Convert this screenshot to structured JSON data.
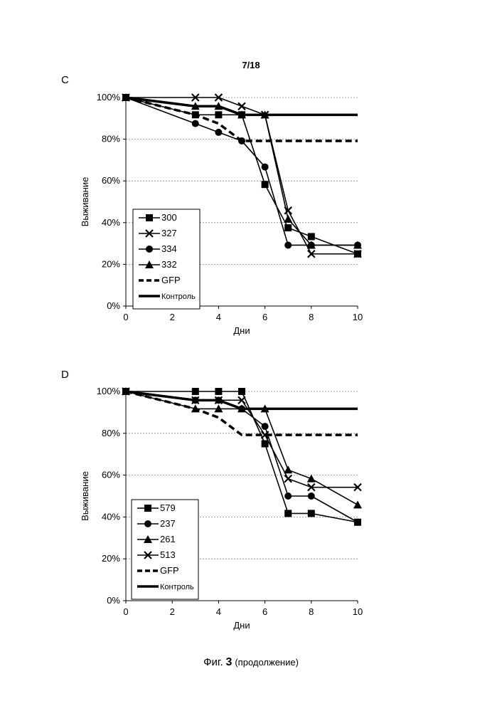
{
  "page": {
    "header": "7/18"
  },
  "caption": {
    "fig_label": "Фиг.",
    "fig_number": "3",
    "note": "(продолжение)"
  },
  "chart_data": [
    {
      "panel": "C",
      "type": "line",
      "xlabel": "Дни",
      "ylabel": "Выживание",
      "xlim": [
        0,
        10
      ],
      "ylim": [
        0,
        100
      ],
      "xticks": [
        0,
        2,
        4,
        6,
        8,
        10
      ],
      "yticks": [
        0,
        20,
        40,
        60,
        80,
        100
      ],
      "ytick_format": "percent",
      "grid": "horizontal-dashed",
      "legend_position": "lower-left",
      "series": [
        {
          "name": "300",
          "marker": "square",
          "line": "solid",
          "x": [
            0,
            3,
            4,
            5,
            6,
            7,
            8,
            10
          ],
          "y": [
            100,
            91.7,
            91.7,
            91.7,
            58.3,
            37.5,
            33.3,
            25
          ]
        },
        {
          "name": "327",
          "marker": "x",
          "line": "solid",
          "x": [
            0,
            3,
            4,
            5,
            6,
            7,
            8,
            10
          ],
          "y": [
            100,
            100,
            100,
            95.8,
            91.7,
            45.8,
            25,
            25
          ]
        },
        {
          "name": "334",
          "marker": "circle",
          "line": "solid",
          "x": [
            0,
            3,
            4,
            5,
            6,
            7,
            8,
            10
          ],
          "y": [
            100,
            87.5,
            83.3,
            79.2,
            66.7,
            29.2,
            29.2,
            29.2
          ]
        },
        {
          "name": "332",
          "marker": "triangle",
          "line": "solid",
          "x": [
            0,
            3,
            4,
            5,
            6,
            7,
            8,
            10
          ],
          "y": [
            100,
            95.8,
            95.8,
            91.7,
            91.7,
            41.7,
            29.2,
            29.2
          ]
        },
        {
          "name": "GFP",
          "marker": "none",
          "line": "dashed",
          "x": [
            0,
            3,
            4,
            5,
            6,
            7,
            8,
            10
          ],
          "y": [
            100,
            91.7,
            87.5,
            79.2,
            79.2,
            79.2,
            79.2,
            79.2
          ]
        },
        {
          "name": "Контроль",
          "marker": "none",
          "line": "thick",
          "x": [
            0,
            3,
            4,
            5,
            6,
            7,
            8,
            10
          ],
          "y": [
            100,
            95.8,
            95.8,
            91.7,
            91.7,
            91.7,
            91.7,
            91.7
          ]
        }
      ]
    },
    {
      "panel": "D",
      "type": "line",
      "xlabel": "Дни",
      "ylabel": "Выживание",
      "xlim": [
        0,
        10
      ],
      "ylim": [
        0,
        100
      ],
      "xticks": [
        0,
        2,
        4,
        6,
        8,
        10
      ],
      "yticks": [
        0,
        20,
        40,
        60,
        80,
        100
      ],
      "ytick_format": "percent",
      "grid": "horizontal-dashed",
      "legend_position": "lower-left",
      "series": [
        {
          "name": "579",
          "marker": "square",
          "line": "solid",
          "x": [
            0,
            3,
            4,
            5,
            6,
            7,
            8,
            10
          ],
          "y": [
            100,
            100,
            100,
            100,
            75,
            41.7,
            41.7,
            37.5
          ]
        },
        {
          "name": "237",
          "marker": "circle",
          "line": "solid",
          "x": [
            0,
            3,
            4,
            5,
            6,
            7,
            8,
            10
          ],
          "y": [
            100,
            95.8,
            95.8,
            91.7,
            83.3,
            50,
            50,
            37.5
          ]
        },
        {
          "name": "261",
          "marker": "triangle",
          "line": "solid",
          "x": [
            0,
            3,
            4,
            5,
            6,
            7,
            8,
            10
          ],
          "y": [
            100,
            91.7,
            91.7,
            91.7,
            91.7,
            62.5,
            58.3,
            45.8
          ]
        },
        {
          "name": "513",
          "marker": "x",
          "line": "solid",
          "x": [
            0,
            3,
            4,
            5,
            6,
            7,
            8,
            10
          ],
          "y": [
            100,
            95.8,
            95.8,
            95.8,
            79.2,
            58.3,
            54.2,
            54.2
          ]
        },
        {
          "name": "GFP",
          "marker": "none",
          "line": "dashed",
          "x": [
            0,
            3,
            4,
            5,
            6,
            7,
            8,
            10
          ],
          "y": [
            100,
            91.7,
            87.5,
            79.2,
            79.2,
            79.2,
            79.2,
            79.2
          ]
        },
        {
          "name": "Контроль",
          "marker": "none",
          "line": "thick",
          "x": [
            0,
            3,
            4,
            5,
            6,
            7,
            8,
            10
          ],
          "y": [
            100,
            95.8,
            95.8,
            91.7,
            91.7,
            91.7,
            91.7,
            91.7
          ]
        }
      ]
    }
  ]
}
